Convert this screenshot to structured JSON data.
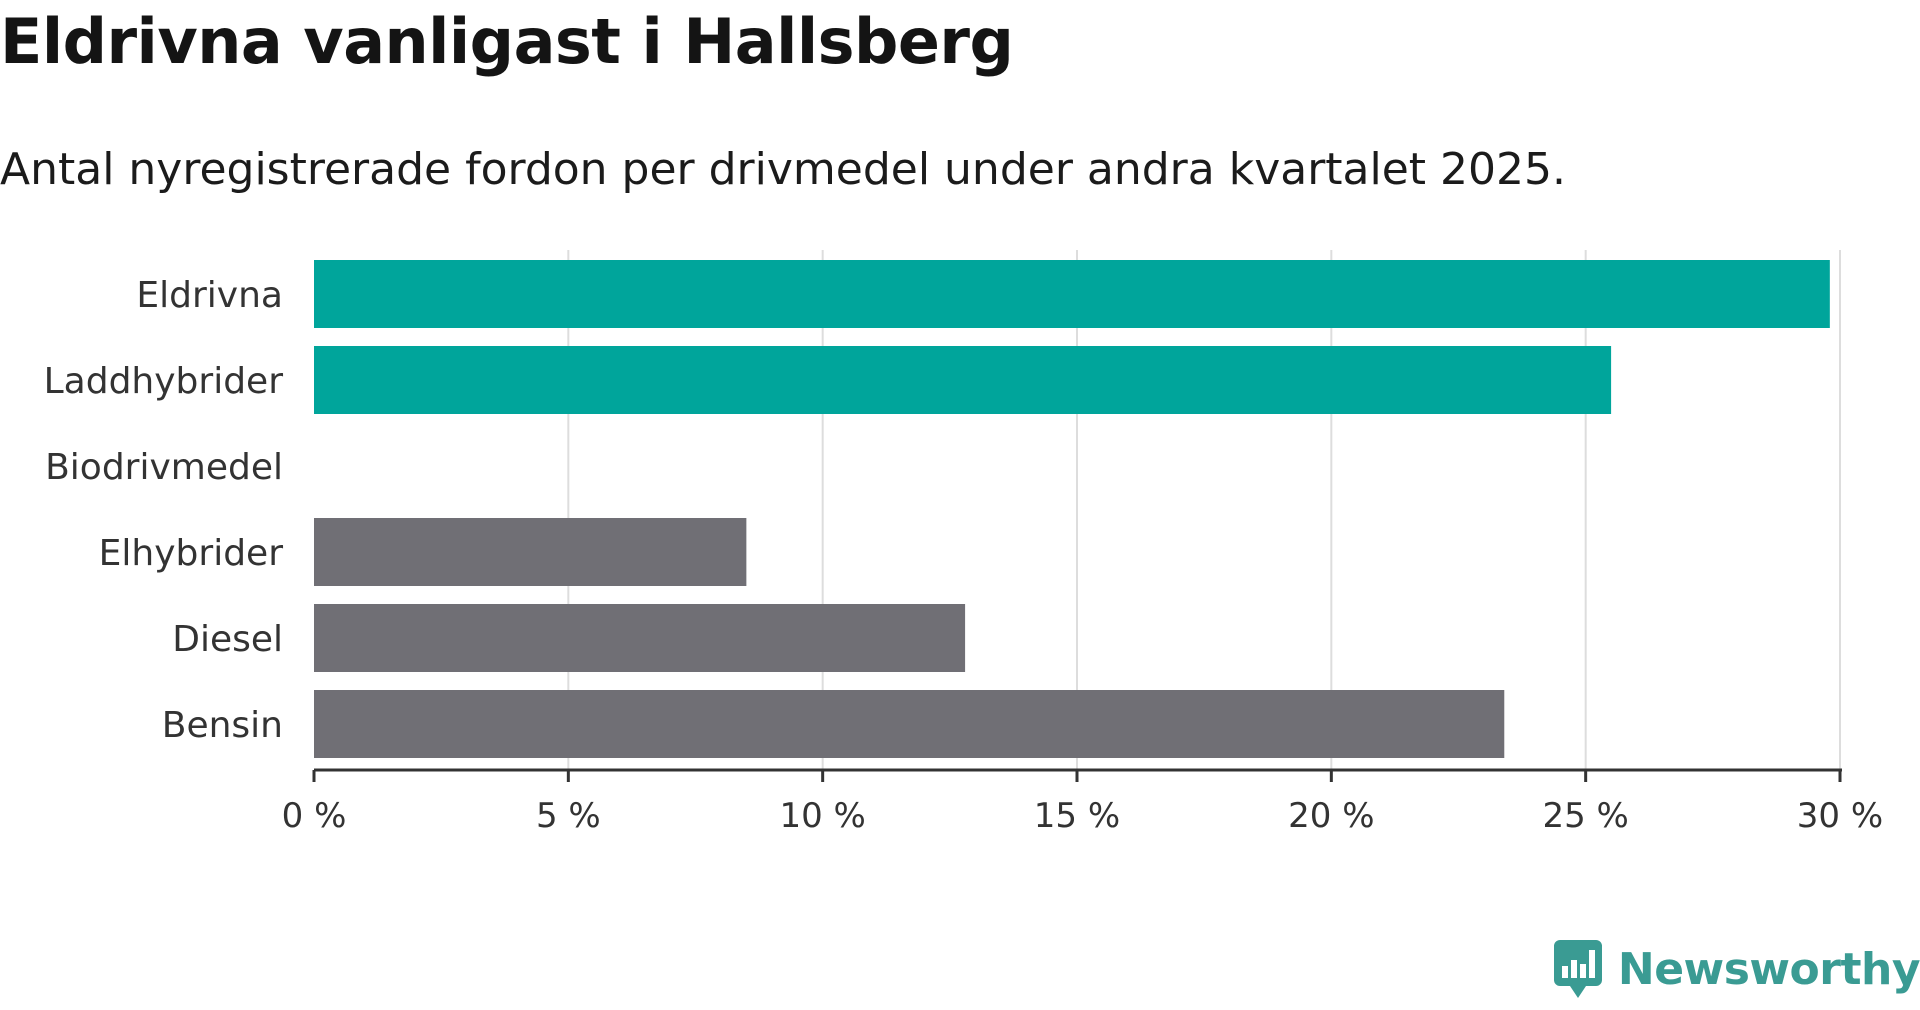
{
  "chart_data": {
    "type": "bar",
    "orientation": "horizontal",
    "title": "Eldrivna vanligast i Hallsberg",
    "subtitle": "Antal nyregistrerade fordon per drivmedel under andra kvartalet 2025.",
    "categories": [
      "Eldrivna",
      "Laddhybrider",
      "Biodrivmedel",
      "Elhybrider",
      "Diesel",
      "Bensin"
    ],
    "values": [
      29.8,
      25.5,
      0,
      8.5,
      12.8,
      23.4
    ],
    "bar_colors": [
      "#00a59b",
      "#00a59b",
      "#00a59b",
      "#706f75",
      "#706f75",
      "#706f75"
    ],
    "xlim": [
      0,
      30
    ],
    "xticks": [
      0,
      5,
      10,
      15,
      20,
      25,
      30
    ],
    "xtick_labels": [
      "0 %",
      "5 %",
      "10 %",
      "15 %",
      "20 %",
      "25 %",
      "30 %"
    ],
    "grid": "vertical",
    "grid_color": "#dddddd",
    "axis_color": "#333333",
    "xlabel": "",
    "ylabel": ""
  },
  "brand": {
    "name": "Newsworthy",
    "color": "#3a9b93",
    "icon": "newsworthy-logo-icon"
  }
}
